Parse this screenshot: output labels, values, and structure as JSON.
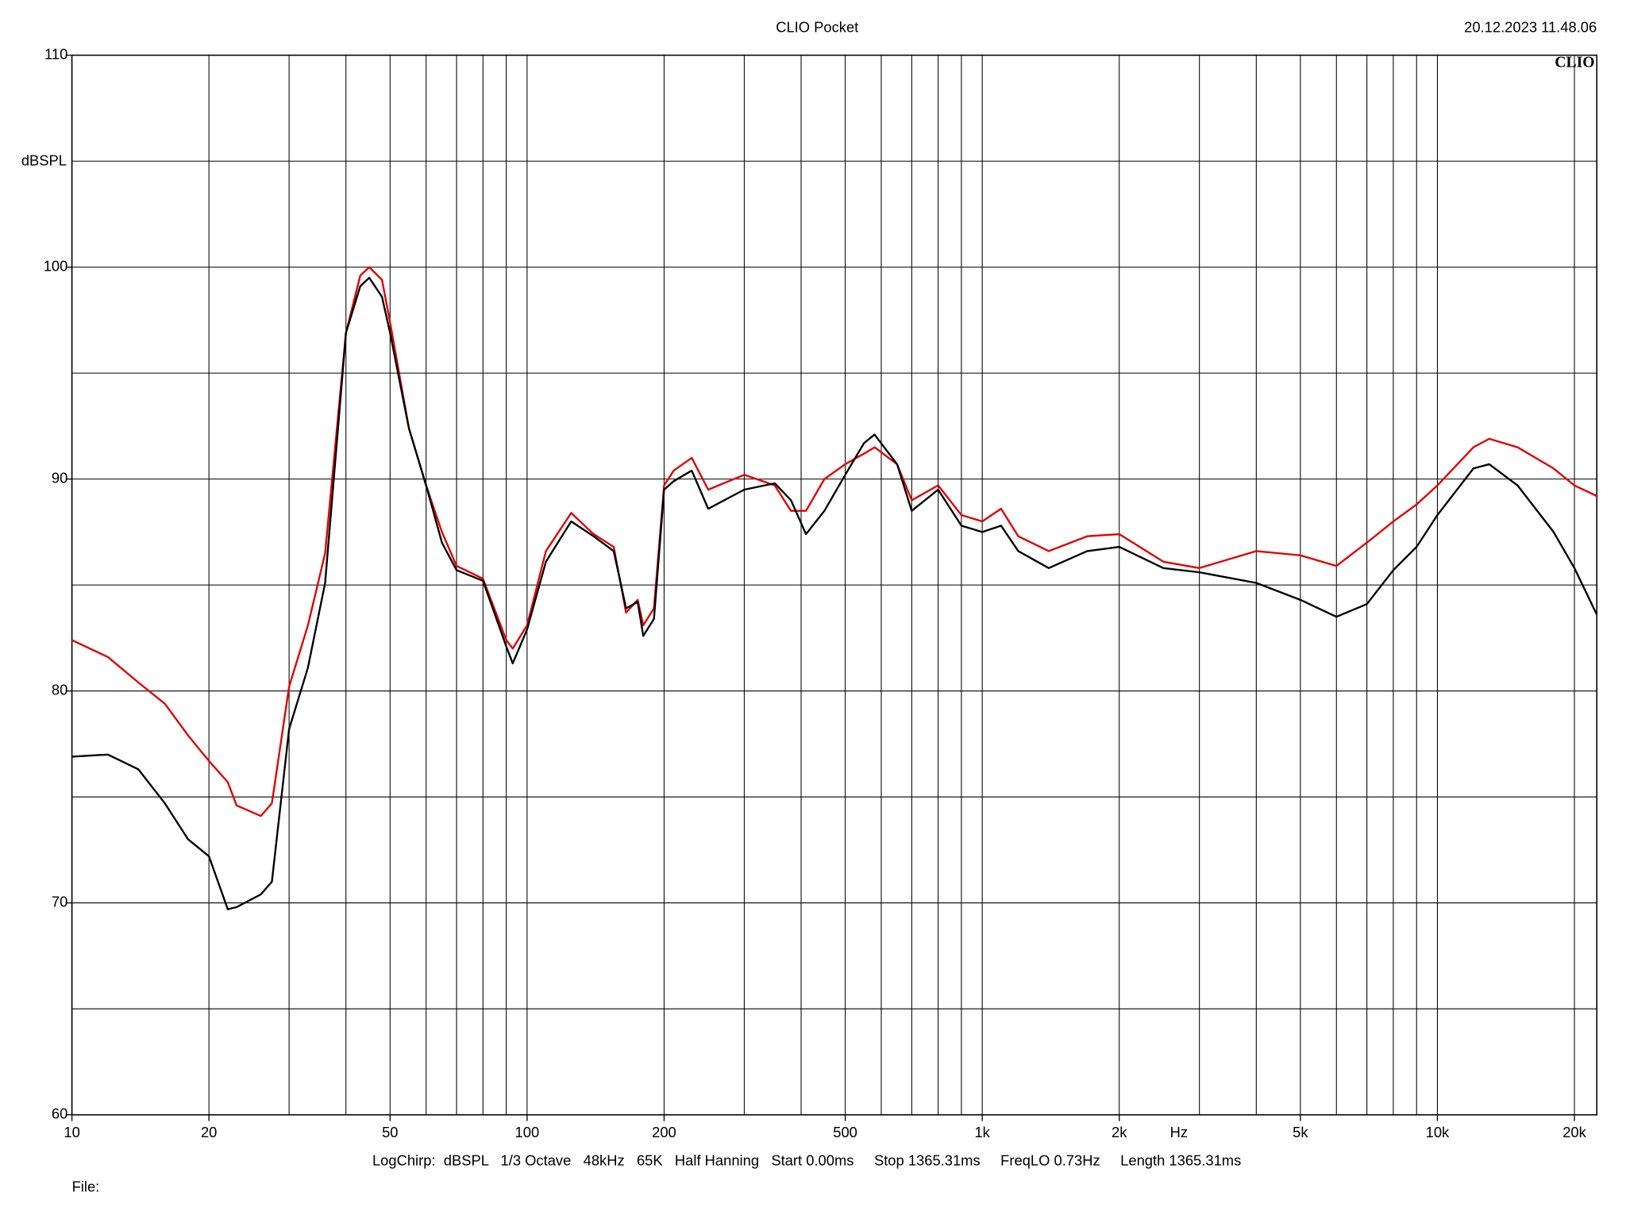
{
  "chart_data": {
    "type": "line",
    "title": "CLIO Pocket",
    "timestamp": "20.12.2023 11.48.06",
    "logo": "CLIO",
    "ylabel": "dBSPL",
    "xlabel": "Hz",
    "footer": "LogChirp:  dBSPL   1/3 Octave   48kHz   65K   Half Hanning   Start 0.00ms     Stop 1365.31ms     FreqLO 0.73Hz     Length 1365.31ms",
    "file_label": "File:",
    "xscale": "log",
    "grid": true,
    "xlim": [
      10,
      22400
    ],
    "ylim": [
      60,
      110
    ],
    "xticks": [
      10,
      20,
      50,
      100,
      200,
      500,
      {
        "value": 1000,
        "label": "1k"
      },
      {
        "value": 2000,
        "label": "2k"
      },
      {
        "value": 5000,
        "label": "5k"
      },
      {
        "value": 10000,
        "label": "10k"
      },
      {
        "value": 20000,
        "label": "20k"
      }
    ],
    "xgrid": [
      10,
      20,
      30,
      40,
      50,
      60,
      70,
      80,
      90,
      100,
      200,
      300,
      400,
      500,
      600,
      700,
      800,
      900,
      1000,
      2000,
      3000,
      4000,
      5000,
      6000,
      7000,
      8000,
      9000,
      10000,
      20000
    ],
    "yticks": [
      60,
      70,
      80,
      90,
      100,
      110
    ],
    "ygrid": [
      65,
      70,
      75,
      80,
      85,
      90,
      95,
      100,
      105
    ],
    "x": [
      10,
      12,
      14,
      16,
      18,
      20,
      22,
      23,
      26,
      27.5,
      30,
      33,
      36,
      40,
      43,
      45,
      48,
      50,
      55,
      60,
      65,
      70,
      80,
      90,
      93,
      100,
      110,
      125,
      140,
      155,
      165,
      175,
      180,
      190,
      200,
      210,
      230,
      250,
      300,
      350,
      380,
      410,
      450,
      500,
      550,
      580,
      650,
      700,
      800,
      900,
      1000,
      1100,
      1200,
      1400,
      1700,
      2000,
      2500,
      3000,
      4000,
      5000,
      6000,
      7000,
      8000,
      9000,
      10000,
      12000,
      13000,
      15000,
      18000,
      20000,
      22400
    ],
    "series": [
      {
        "color": "#e00000",
        "values": [
          82.4,
          81.6,
          80.4,
          79.4,
          77.9,
          76.7,
          75.7,
          74.6,
          74.1,
          74.7,
          80.2,
          83.1,
          86.5,
          96.9,
          99.6,
          100.0,
          99.4,
          97.4,
          92.4,
          89.7,
          87.5,
          85.9,
          85.3,
          82.4,
          82.0,
          83.1,
          86.6,
          88.4,
          87.4,
          86.8,
          83.7,
          84.3,
          83.1,
          83.9,
          89.7,
          90.4,
          91.0,
          89.5,
          90.2,
          89.7,
          88.5,
          88.5,
          90.0,
          90.7,
          91.2,
          91.5,
          90.7,
          89.0,
          89.7,
          88.3,
          88.0,
          88.6,
          87.3,
          86.6,
          87.3,
          87.4,
          86.1,
          85.8,
          86.6,
          86.4,
          85.9,
          87.0,
          88.0,
          88.8,
          89.7,
          91.5,
          91.9,
          91.5,
          90.5,
          89.7,
          89.2
        ]
      },
      {
        "color": "#000000",
        "values": [
          76.9,
          77.0,
          76.3,
          74.7,
          73.0,
          72.2,
          69.7,
          69.8,
          70.4,
          71.0,
          78.2,
          81.1,
          85.1,
          96.9,
          99.1,
          99.5,
          98.6,
          96.9,
          92.4,
          89.7,
          87.0,
          85.7,
          85.2,
          82.1,
          81.3,
          82.9,
          86.1,
          88.0,
          87.3,
          86.6,
          83.9,
          84.2,
          82.6,
          83.4,
          89.5,
          89.9,
          90.4,
          88.6,
          89.5,
          89.8,
          89.0,
          87.4,
          88.5,
          90.2,
          91.7,
          92.1,
          90.7,
          88.5,
          89.5,
          87.8,
          87.5,
          87.8,
          86.6,
          85.8,
          86.6,
          86.8,
          85.8,
          85.6,
          85.1,
          84.3,
          83.5,
          84.1,
          85.7,
          86.8,
          88.3,
          90.5,
          90.7,
          89.7,
          87.5,
          85.8,
          83.6
        ]
      }
    ]
  }
}
